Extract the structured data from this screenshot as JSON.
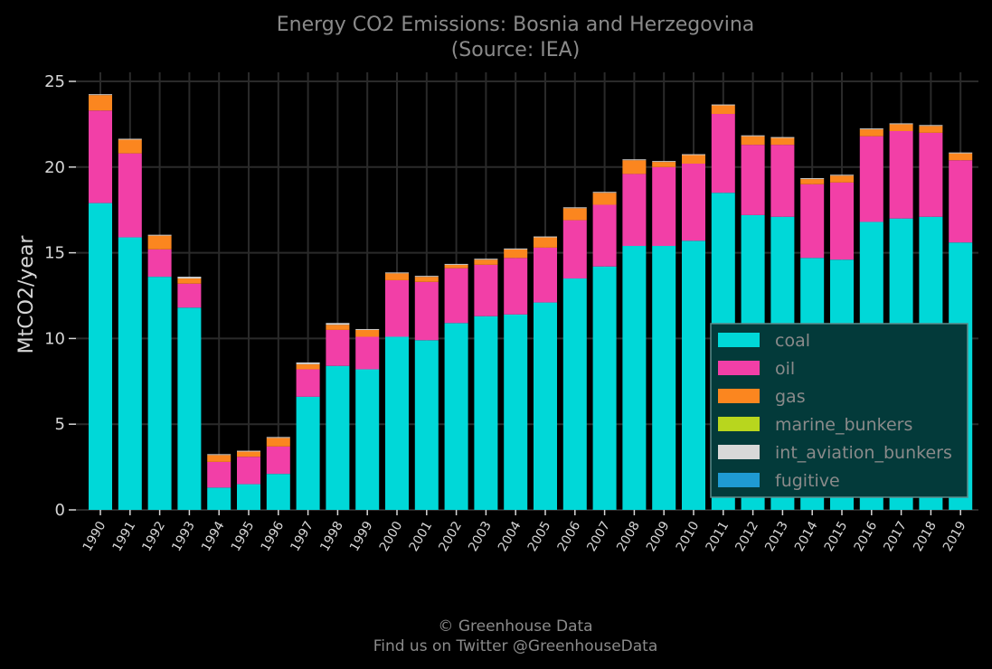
{
  "chart_data": {
    "type": "bar",
    "stacked": true,
    "title": "Energy CO2 Emissions: Bosnia and Herzegovina",
    "subtitle": "(Source: IEA)",
    "xlabel": "",
    "ylabel": "MtCO2/year",
    "ylim": [
      0,
      25
    ],
    "yticks": [
      "0",
      "5",
      "10",
      "15",
      "20",
      "25"
    ],
    "grid": true,
    "legend_position": "right",
    "categories": [
      "1990",
      "1991",
      "1992",
      "1993",
      "1994",
      "1995",
      "1996",
      "1997",
      "1998",
      "1999",
      "2000",
      "2001",
      "2002",
      "2003",
      "2004",
      "2005",
      "2006",
      "2007",
      "2008",
      "2009",
      "2010",
      "2011",
      "2012",
      "2013",
      "2014",
      "2015",
      "2016",
      "2017",
      "2018",
      "2019"
    ],
    "series": [
      {
        "name": "coal",
        "color": "#00d8d8",
        "values": [
          17.9,
          15.9,
          13.6,
          11.8,
          1.3,
          1.5,
          2.1,
          6.6,
          8.4,
          8.2,
          10.1,
          9.9,
          10.9,
          11.3,
          11.4,
          12.1,
          13.5,
          14.2,
          15.4,
          15.4,
          15.7,
          18.5,
          17.2,
          17.1,
          14.7,
          14.6,
          16.8,
          17.0,
          17.1,
          15.6
        ]
      },
      {
        "name": "oil",
        "color": "#f23fa7",
        "values": [
          5.4,
          4.9,
          1.6,
          1.4,
          1.5,
          1.6,
          1.6,
          1.6,
          2.1,
          1.9,
          3.3,
          3.4,
          3.2,
          3.0,
          3.3,
          3.2,
          3.4,
          3.6,
          4.2,
          4.6,
          4.5,
          4.6,
          4.1,
          4.2,
          4.3,
          4.5,
          5.0,
          5.1,
          4.9,
          4.8
        ]
      },
      {
        "name": "gas",
        "color": "#fb861f",
        "values": [
          0.9,
          0.8,
          0.8,
          0.3,
          0.4,
          0.3,
          0.5,
          0.3,
          0.3,
          0.4,
          0.4,
          0.3,
          0.2,
          0.3,
          0.5,
          0.6,
          0.7,
          0.7,
          0.8,
          0.3,
          0.5,
          0.5,
          0.5,
          0.4,
          0.3,
          0.4,
          0.4,
          0.4,
          0.4,
          0.4
        ]
      },
      {
        "name": "marine_bunkers",
        "color": "#b8d61e",
        "values": [
          0,
          0,
          0,
          0,
          0,
          0,
          0,
          0,
          0,
          0,
          0,
          0,
          0,
          0,
          0,
          0,
          0,
          0,
          0,
          0,
          0,
          0,
          0,
          0,
          0,
          0,
          0,
          0,
          0,
          0
        ]
      },
      {
        "name": "int_aviation_bunkers",
        "color": "#d8d8d8",
        "values": [
          0.05,
          0.05,
          0.05,
          0.1,
          0.05,
          0.05,
          0.05,
          0.1,
          0.1,
          0.05,
          0.05,
          0.05,
          0.05,
          0.05,
          0.05,
          0.05,
          0.05,
          0.05,
          0.05,
          0.05,
          0.05,
          0.05,
          0.05,
          0.05,
          0.05,
          0.05,
          0.05,
          0.05,
          0.05,
          0.05
        ]
      },
      {
        "name": "fugitive",
        "color": "#1f9ad2",
        "values": [
          0,
          0,
          0,
          0,
          0,
          0,
          0,
          0,
          0,
          0,
          0,
          0,
          0,
          0,
          0,
          0,
          0,
          0,
          0,
          0,
          0,
          0,
          0,
          0,
          0,
          0,
          0,
          0,
          0,
          0
        ]
      }
    ]
  },
  "footer": {
    "line1": "© Greenhouse Data",
    "line2": "Find us on Twitter @GreenhouseData"
  }
}
